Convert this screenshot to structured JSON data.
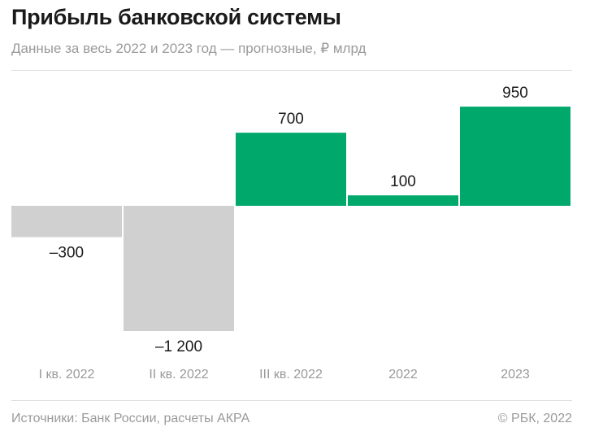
{
  "header": {
    "title": "Прибыль банковской системы",
    "subtitle": "Данные за весь 2022 и 2023 год — прогнозные, ₽ млрд"
  },
  "footer": {
    "source": "Источники: Банк России, расчеты АКРА",
    "copyright": "© РБК, 2022"
  },
  "colors": {
    "positive": "#00a86b",
    "negative": "#d0d0d0",
    "axis_label": "#9a9a9a",
    "value_label": "#1a1a1a"
  },
  "chart_data": {
    "type": "bar",
    "title": "Прибыль банковской системы",
    "subtitle": "Данные за весь 2022 и 2023 год — прогнозные, ₽ млрд",
    "categories": [
      "I кв. 2022",
      "II кв. 2022",
      "III кв. 2022",
      "2022",
      "2023"
    ],
    "values": [
      -300,
      -1200,
      700,
      100,
      950
    ],
    "value_labels": [
      "–300",
      "–1 200",
      "700",
      "100",
      "950"
    ],
    "xlabel": "",
    "ylabel": "",
    "ylim": [
      -1200,
      950
    ],
    "grid": false,
    "legend": "none"
  }
}
